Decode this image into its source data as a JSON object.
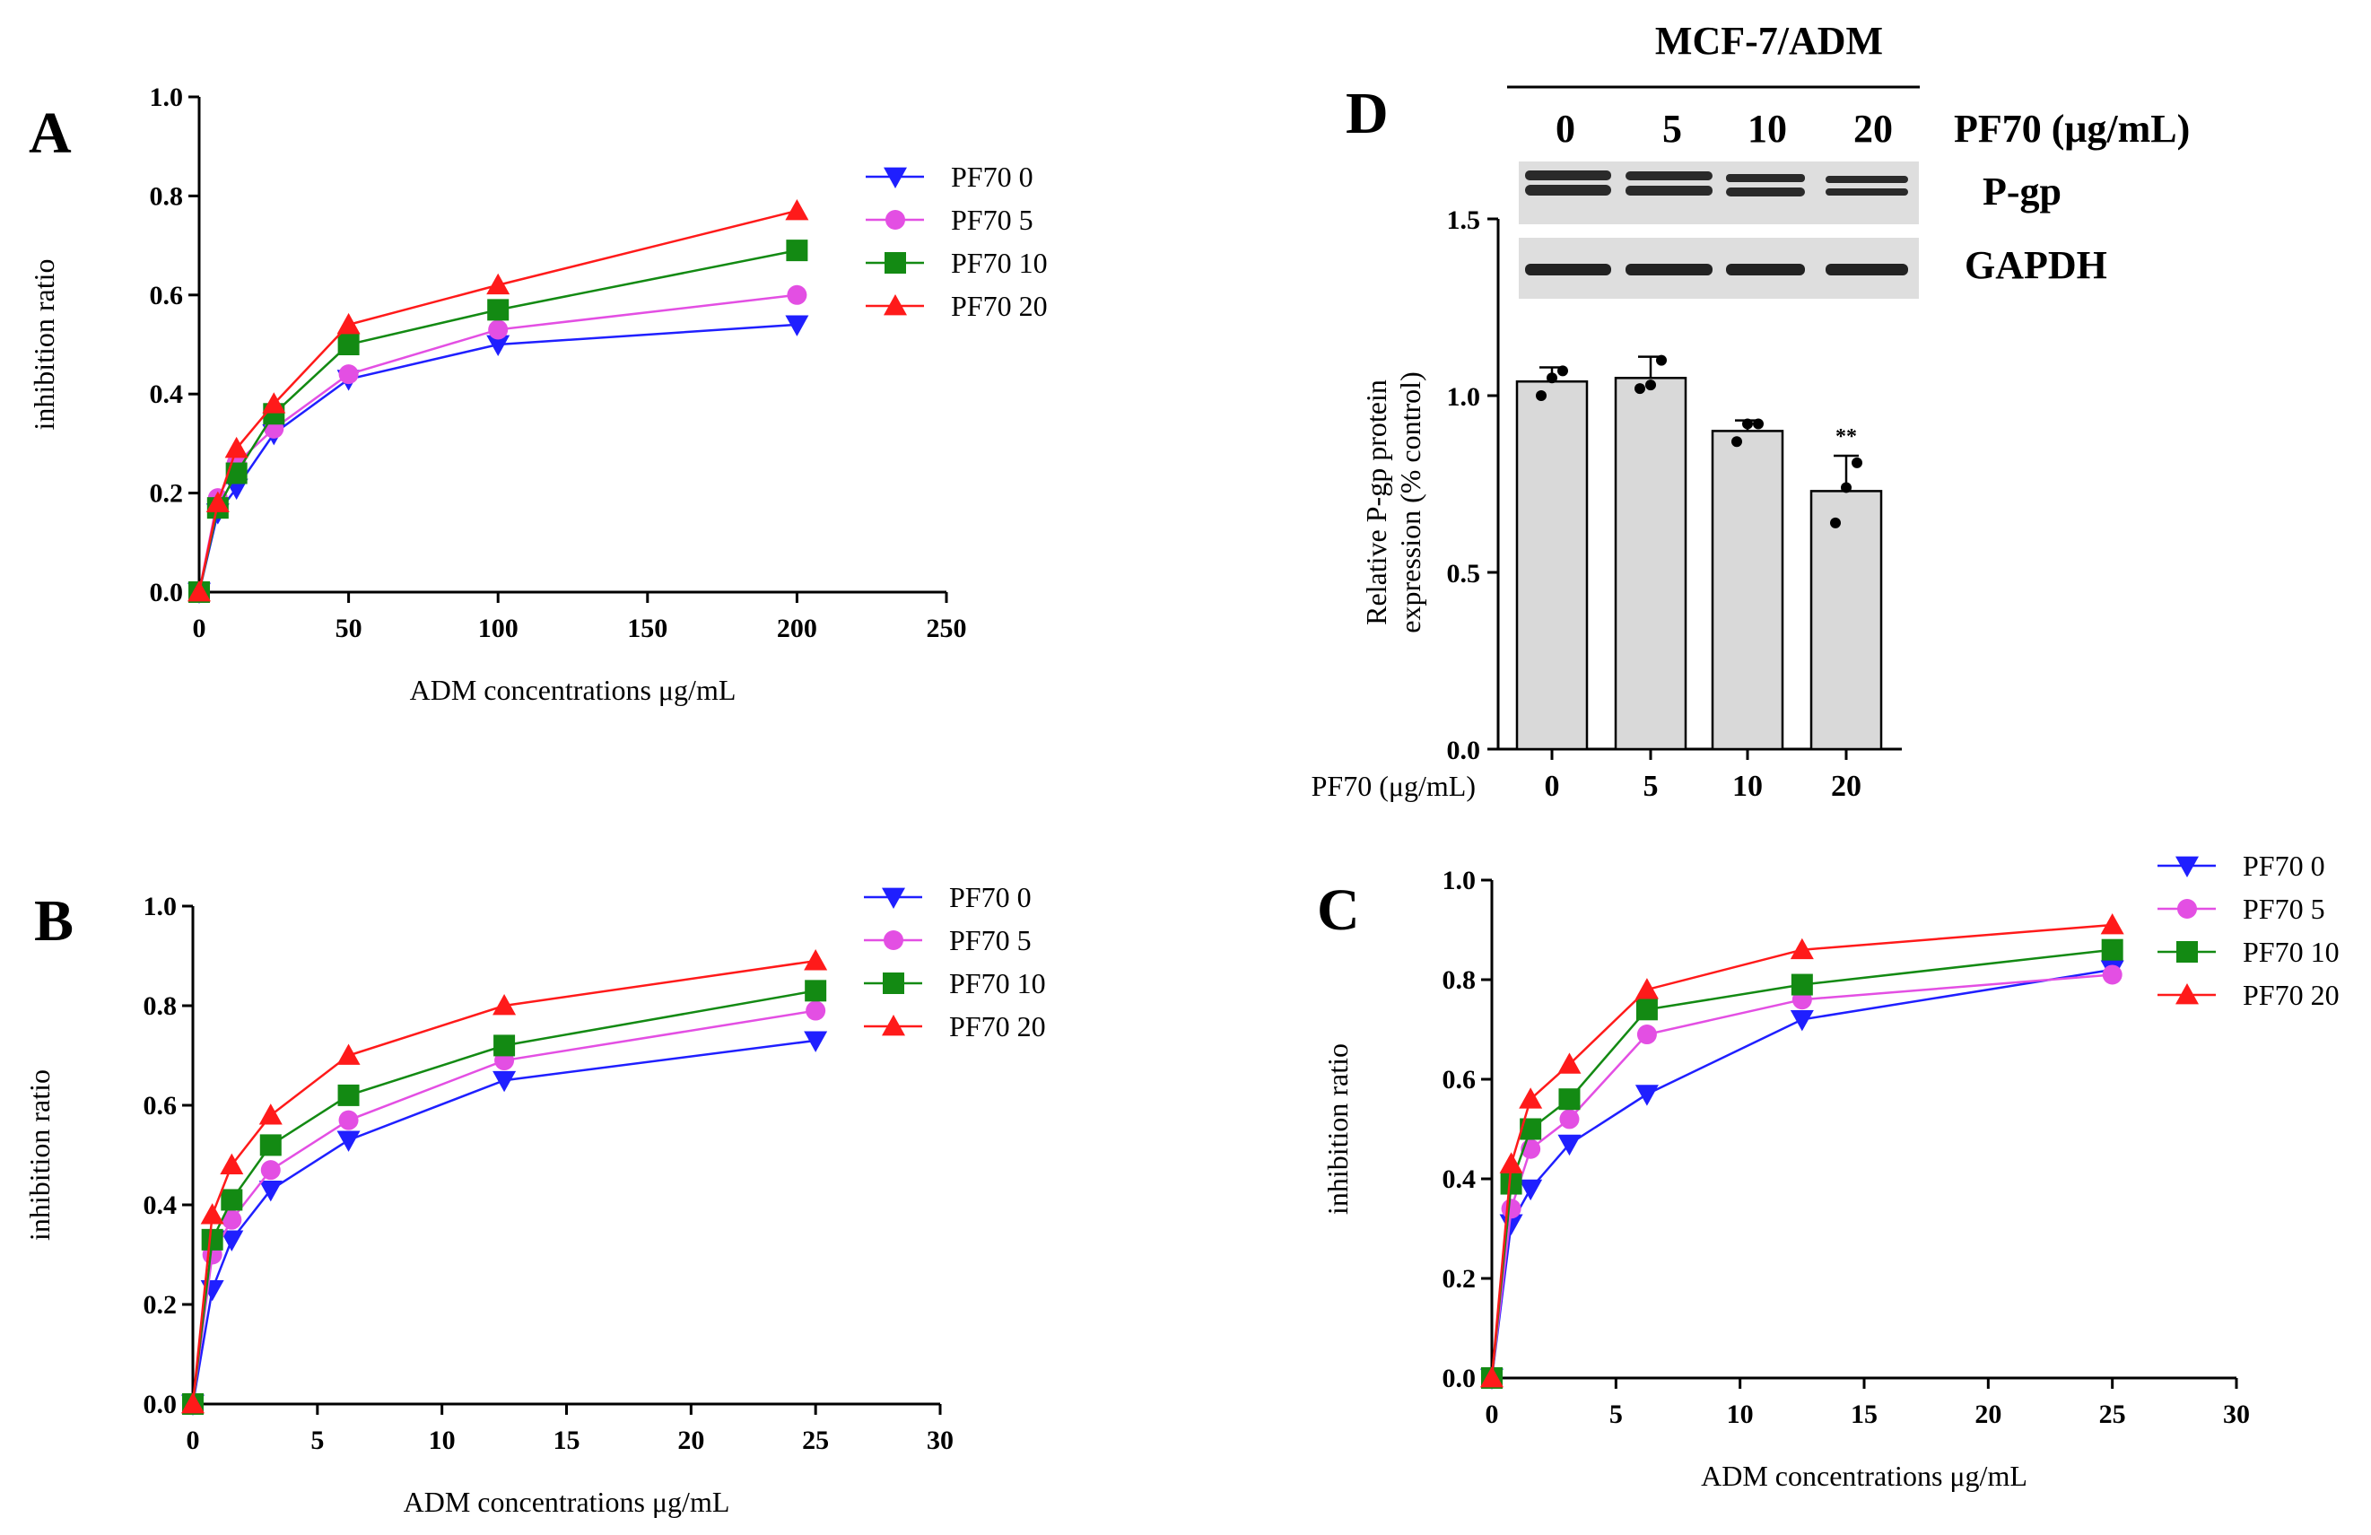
{
  "figure": {
    "colors": {
      "PF70 0": "#1f1fff",
      "PF70 5": "#e34fe3",
      "PF70 10": "#138a13",
      "PF70 20": "#ff1a1a"
    },
    "markers": {
      "PF70 0": "tri-down",
      "PF70 5": "circle",
      "PF70 10": "square",
      "PF70 20": "tri-up"
    }
  },
  "chart_data": [
    {
      "id": "A",
      "panel_label": "A",
      "type": "line",
      "xlabel": "ADM concentrations μg/mL",
      "ylabel": "inhibition ratio",
      "xlim": [
        0,
        250
      ],
      "ylim": [
        0,
        1.0
      ],
      "xticks": [
        0,
        50,
        100,
        150,
        200,
        250
      ],
      "yticks": [
        0.0,
        0.2,
        0.4,
        0.6,
        0.8,
        1.0
      ],
      "xtick_labels": [
        "0",
        "50",
        "100",
        "150",
        "200",
        "250"
      ],
      "ytick_labels": [
        "0.0",
        "0.2",
        "0.4",
        "0.6",
        "0.8",
        "1.0"
      ],
      "x": [
        0,
        6.25,
        12.5,
        25,
        50,
        100,
        200
      ],
      "series": [
        {
          "name": "PF70 0",
          "values": [
            0,
            0.16,
            0.21,
            0.32,
            0.43,
            0.5,
            0.54
          ]
        },
        {
          "name": "PF70 5",
          "values": [
            0,
            0.19,
            0.26,
            0.33,
            0.44,
            0.53,
            0.6
          ]
        },
        {
          "name": "PF70 10",
          "values": [
            0,
            0.17,
            0.24,
            0.36,
            0.5,
            0.57,
            0.69
          ]
        },
        {
          "name": "PF70 20",
          "values": [
            0,
            0.18,
            0.29,
            0.38,
            0.54,
            0.62,
            0.77
          ]
        }
      ]
    },
    {
      "id": "B",
      "panel_label": "B",
      "type": "line",
      "xlabel": "ADM concentrations μg/mL",
      "ylabel": "inhibition ratio",
      "xlim": [
        0,
        30
      ],
      "ylim": [
        0,
        1.0
      ],
      "xticks": [
        0,
        5,
        10,
        15,
        20,
        25,
        30
      ],
      "yticks": [
        0.0,
        0.2,
        0.4,
        0.6,
        0.8,
        1.0
      ],
      "xtick_labels": [
        "0",
        "5",
        "10",
        "15",
        "20",
        "25",
        "30"
      ],
      "ytick_labels": [
        "0.0",
        "0.2",
        "0.4",
        "0.6",
        "0.8",
        "1.0"
      ],
      "x": [
        0,
        0.78,
        1.56,
        3.125,
        6.25,
        12.5,
        25
      ],
      "series": [
        {
          "name": "PF70 0",
          "values": [
            0,
            0.23,
            0.33,
            0.43,
            0.53,
            0.65,
            0.73
          ]
        },
        {
          "name": "PF70 5",
          "values": [
            0,
            0.3,
            0.37,
            0.47,
            0.57,
            0.69,
            0.79
          ]
        },
        {
          "name": "PF70 10",
          "values": [
            0,
            0.33,
            0.41,
            0.52,
            0.62,
            0.72,
            0.83
          ]
        },
        {
          "name": "PF70 20",
          "values": [
            0,
            0.38,
            0.48,
            0.58,
            0.7,
            0.8,
            0.89
          ]
        }
      ]
    },
    {
      "id": "C",
      "panel_label": "C",
      "type": "line",
      "xlabel": "ADM concentrations μg/mL",
      "ylabel": "inhibition ratio",
      "xlim": [
        0,
        30
      ],
      "ylim": [
        0,
        1.0
      ],
      "xticks": [
        0,
        5,
        10,
        15,
        20,
        25,
        30
      ],
      "yticks": [
        0.0,
        0.2,
        0.4,
        0.6,
        0.8,
        1.0
      ],
      "xtick_labels": [
        "0",
        "5",
        "10",
        "15",
        "20",
        "25",
        "30"
      ],
      "ytick_labels": [
        "0.0",
        "0.2",
        "0.4",
        "0.6",
        "0.8",
        "1.0"
      ],
      "x": [
        0,
        0.78,
        1.56,
        3.125,
        6.25,
        12.5,
        25
      ],
      "series": [
        {
          "name": "PF70 0",
          "values": [
            0,
            0.31,
            0.38,
            0.47,
            0.57,
            0.72,
            0.82
          ]
        },
        {
          "name": "PF70 5",
          "values": [
            0,
            0.34,
            0.46,
            0.52,
            0.69,
            0.76,
            0.81
          ]
        },
        {
          "name": "PF70 10",
          "values": [
            0,
            0.39,
            0.5,
            0.56,
            0.74,
            0.79,
            0.86
          ]
        },
        {
          "name": "PF70 20",
          "values": [
            0,
            0.43,
            0.56,
            0.63,
            0.78,
            0.86,
            0.91
          ]
        }
      ]
    },
    {
      "id": "D",
      "panel_label": "D",
      "type": "bar",
      "ylabel_lines": [
        "Relative P-gp protein",
        "expression (% control)"
      ],
      "xlabel": "PF70 (μg/mL)",
      "categories": [
        "0",
        "5",
        "10",
        "20"
      ],
      "values": [
        1.04,
        1.05,
        0.9,
        0.73
      ],
      "errors": [
        0.04,
        0.06,
        0.03,
        0.1
      ],
      "points": [
        [
          1.0,
          1.05,
          1.07
        ],
        [
          1.02,
          1.03,
          1.1
        ],
        [
          0.87,
          0.92,
          0.92
        ],
        [
          0.64,
          0.74,
          0.81
        ]
      ],
      "significance": [
        "",
        "",
        "",
        "**"
      ],
      "ylim": [
        0,
        1.5
      ],
      "yticks": [
        0.0,
        0.5,
        1.0,
        1.5
      ],
      "ytick_labels": [
        "0.0",
        "0.5",
        "1.0",
        "1.5"
      ]
    }
  ],
  "blot": {
    "cell_line": "MCF-7/ADM",
    "lanes": [
      "0",
      "5",
      "10",
      "20"
    ],
    "treatment_label": "PF70 (μg/mL)",
    "band_labels": [
      "P-gp",
      "GAPDH"
    ]
  }
}
